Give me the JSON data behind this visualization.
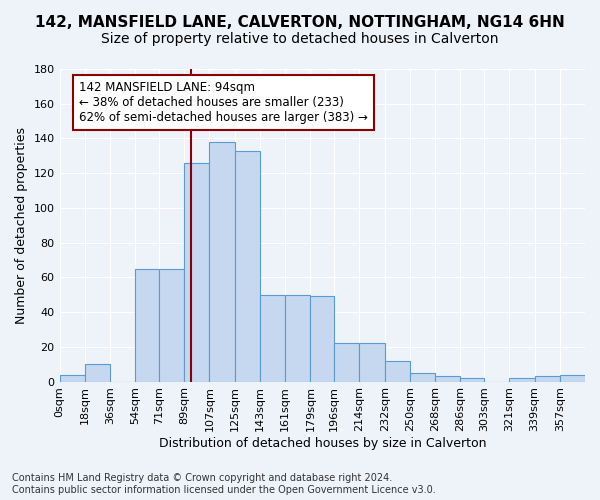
{
  "title_line1": "142, MANSFIELD LANE, CALVERTON, NOTTINGHAM, NG14 6HN",
  "title_line2": "Size of property relative to detached houses in Calverton",
  "xlabel": "Distribution of detached houses by size in Calverton",
  "ylabel": "Number of detached properties",
  "bar_values": [
    4,
    10,
    0,
    65,
    65,
    126,
    138,
    133,
    50,
    50,
    49,
    22,
    22,
    12,
    5,
    3,
    2,
    0,
    2,
    3,
    4
  ],
  "bin_labels": [
    "0sqm",
    "18sqm",
    "36sqm",
    "54sqm",
    "71sqm",
    "89sqm",
    "107sqm",
    "125sqm",
    "143sqm",
    "161sqm",
    "179sqm",
    "196sqm",
    "214sqm",
    "232sqm",
    "250sqm",
    "268sqm",
    "286sqm",
    "303sqm",
    "321sqm",
    "339sqm",
    "357sqm"
  ],
  "bin_edges": [
    0,
    18,
    36,
    54,
    71,
    89,
    107,
    125,
    143,
    161,
    179,
    196,
    214,
    232,
    250,
    268,
    286,
    303,
    321,
    339,
    357,
    375
  ],
  "bar_color": "#c5d8f0",
  "bar_edge_color": "#5b9bd5",
  "property_size": 94,
  "vline_x": 94,
  "vline_color": "#8b0000",
  "annotation_text": "142 MANSFIELD LANE: 94sqm\n← 38% of detached houses are smaller (233)\n62% of semi-detached houses are larger (383) →",
  "annotation_box_color": "white",
  "annotation_box_edge": "#8b0000",
  "ylim": [
    0,
    180
  ],
  "yticks": [
    0,
    20,
    40,
    60,
    80,
    100,
    120,
    140,
    160,
    180
  ],
  "footnote": "Contains HM Land Registry data © Crown copyright and database right 2024.\nContains public sector information licensed under the Open Government Licence v3.0.",
  "bg_color": "#eef2f9",
  "grid_color": "#ffffff",
  "title_fontsize": 11,
  "subtitle_fontsize": 10,
  "axis_label_fontsize": 9,
  "tick_fontsize": 8,
  "annotation_fontsize": 8.5,
  "footnote_fontsize": 7
}
